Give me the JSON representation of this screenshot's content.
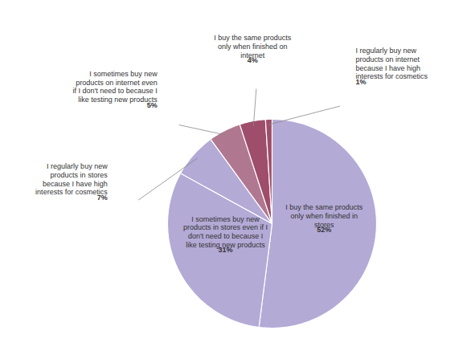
{
  "chart_data": {
    "type": "pie",
    "categories": [
      "I buy the same products\nonly when finished in\nstores",
      "I sometimes buy new\nproducts in stores even if I\ndon't need to because I\nlike testing new products",
      "I regularly buy new\nproducts in stores\nbecause I have high\ninterests for cosmetics",
      "I sometimes buy new\nproducts on internet even\nif I don't need to because I\nlike testing new products",
      "I buy the same products\nonly when finished on\ninternet",
      "I regularly buy new\nproducts on internet\nbecause I have high\ninterests for cosmetics"
    ],
    "values": [
      52,
      31,
      7,
      5,
      4,
      1
    ],
    "value_labels": [
      "52%",
      "31%",
      "7%",
      "5%",
      "4%",
      "1%"
    ],
    "colors": [
      "#b3aad6",
      "#b3aad6",
      "#b3aad6",
      "#b07890",
      "#9e4d6a",
      "#9e4d6a"
    ],
    "data_labels": true
  }
}
